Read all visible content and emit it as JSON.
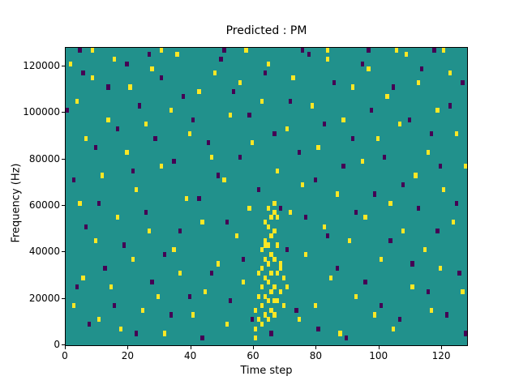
{
  "title": "Predicted : PM",
  "xlabel": "Time step",
  "ylabel": "Frequency (Hz)",
  "chart_data": {
    "type": "heatmap",
    "title": "Predicted : PM",
    "xlabel": "Time step",
    "ylabel": "Frequency (Hz)",
    "x_range": [
      0,
      128
    ],
    "y_range": [
      0,
      128000
    ],
    "x_ticks": [
      0,
      20,
      40,
      60,
      80,
      100,
      120
    ],
    "y_ticks": [
      0,
      20000,
      40000,
      60000,
      80000,
      100000,
      120000
    ],
    "grid_cols": 128,
    "grid_rows": 64,
    "background_color": "#21918c",
    "point_colors": {
      "1": "#fde725",
      "0": "#440154"
    },
    "legend": "none",
    "grid": false,
    "points": [
      [
        1,
        60,
        1
      ],
      [
        2,
        8,
        1
      ],
      [
        3,
        52,
        1
      ],
      [
        4,
        30,
        1
      ],
      [
        5,
        14,
        1
      ],
      [
        6,
        44,
        1
      ],
      [
        8,
        57,
        1
      ],
      [
        9,
        22,
        1
      ],
      [
        10,
        5,
        1
      ],
      [
        11,
        36,
        1
      ],
      [
        13,
        48,
        1
      ],
      [
        14,
        12,
        1
      ],
      [
        15,
        61,
        1
      ],
      [
        16,
        27,
        1
      ],
      [
        17,
        3,
        1
      ],
      [
        19,
        41,
        1
      ],
      [
        20,
        55,
        1
      ],
      [
        21,
        18,
        1
      ],
      [
        22,
        33,
        1
      ],
      [
        24,
        7,
        1
      ],
      [
        25,
        47,
        1
      ],
      [
        26,
        24,
        1
      ],
      [
        27,
        59,
        1
      ],
      [
        29,
        10,
        1
      ],
      [
        30,
        38,
        1
      ],
      [
        31,
        2,
        1
      ],
      [
        33,
        50,
        1
      ],
      [
        34,
        20,
        1
      ],
      [
        35,
        62,
        1
      ],
      [
        36,
        15,
        1
      ],
      [
        38,
        31,
        1
      ],
      [
        39,
        45,
        1
      ],
      [
        40,
        6,
        1
      ],
      [
        42,
        54,
        1
      ],
      [
        43,
        26,
        1
      ],
      [
        44,
        11,
        1
      ],
      [
        46,
        40,
        1
      ],
      [
        47,
        58,
        1
      ],
      [
        48,
        17,
        1
      ],
      [
        50,
        35,
        1
      ],
      [
        51,
        4,
        1
      ],
      [
        52,
        49,
        1
      ],
      [
        54,
        23,
        1
      ],
      [
        55,
        56,
        1
      ],
      [
        56,
        13,
        1
      ],
      [
        58,
        29,
        1
      ],
      [
        59,
        43,
        1
      ],
      [
        60,
        1,
        1
      ],
      [
        62,
        52,
        1
      ],
      [
        63,
        21,
        1
      ],
      [
        64,
        60,
        1
      ],
      [
        66,
        9,
        1
      ],
      [
        67,
        37,
        1
      ],
      [
        68,
        16,
        1
      ],
      [
        70,
        46,
        1
      ],
      [
        71,
        28,
        1
      ],
      [
        72,
        57,
        1
      ],
      [
        74,
        5,
        1
      ],
      [
        75,
        34,
        1
      ],
      [
        76,
        19,
        1
      ],
      [
        78,
        51,
        1
      ],
      [
        79,
        8,
        1
      ],
      [
        80,
        42,
        1
      ],
      [
        82,
        25,
        1
      ],
      [
        83,
        61,
        1
      ],
      [
        84,
        14,
        1
      ],
      [
        86,
        32,
        1
      ],
      [
        87,
        2,
        1
      ],
      [
        88,
        48,
        1
      ],
      [
        90,
        22,
        1
      ],
      [
        91,
        55,
        1
      ],
      [
        92,
        10,
        1
      ],
      [
        94,
        39,
        1
      ],
      [
        95,
        27,
        1
      ],
      [
        96,
        59,
        1
      ],
      [
        98,
        6,
        1
      ],
      [
        99,
        44,
        1
      ],
      [
        100,
        18,
        1
      ],
      [
        102,
        53,
        1
      ],
      [
        103,
        30,
        1
      ],
      [
        104,
        3,
        1
      ],
      [
        106,
        47,
        1
      ],
      [
        107,
        24,
        1
      ],
      [
        108,
        62,
        1
      ],
      [
        110,
        12,
        1
      ],
      [
        111,
        36,
        1
      ],
      [
        112,
        56,
        1
      ],
      [
        114,
        20,
        1
      ],
      [
        115,
        41,
        1
      ],
      [
        116,
        7,
        1
      ],
      [
        118,
        50,
        1
      ],
      [
        119,
        16,
        1
      ],
      [
        120,
        33,
        1
      ],
      [
        122,
        58,
        1
      ],
      [
        123,
        26,
        1
      ],
      [
        124,
        45,
        1
      ],
      [
        126,
        11,
        1
      ],
      [
        127,
        38,
        1
      ],
      [
        8,
        63,
        1
      ],
      [
        30,
        63,
        1
      ],
      [
        57,
        63,
        1
      ],
      [
        83,
        63,
        1
      ],
      [
        105,
        63,
        1
      ],
      [
        120,
        63,
        1
      ],
      [
        60,
        3,
        1
      ],
      [
        60,
        7,
        1
      ],
      [
        61,
        5,
        1
      ],
      [
        61,
        10,
        1
      ],
      [
        62,
        4,
        1
      ],
      [
        62,
        8,
        1
      ],
      [
        62,
        12,
        1
      ],
      [
        62,
        16,
        1
      ],
      [
        63,
        6,
        1
      ],
      [
        63,
        10,
        1
      ],
      [
        63,
        14,
        1
      ],
      [
        63,
        18,
        1
      ],
      [
        63,
        22,
        1
      ],
      [
        64,
        5,
        1
      ],
      [
        64,
        9,
        1
      ],
      [
        64,
        13,
        1
      ],
      [
        64,
        17,
        1
      ],
      [
        64,
        21,
        1
      ],
      [
        64,
        25,
        1
      ],
      [
        65,
        7,
        1
      ],
      [
        65,
        11,
        1
      ],
      [
        65,
        15,
        1
      ],
      [
        65,
        19,
        1
      ],
      [
        65,
        23,
        1
      ],
      [
        66,
        6,
        1
      ],
      [
        66,
        12,
        1
      ],
      [
        66,
        18,
        1
      ],
      [
        66,
        24,
        1
      ],
      [
        66,
        28,
        1
      ],
      [
        67,
        9,
        1
      ],
      [
        67,
        15,
        1
      ],
      [
        67,
        21,
        1
      ],
      [
        68,
        11,
        1
      ],
      [
        68,
        17,
        1
      ],
      [
        69,
        8,
        1
      ],
      [
        69,
        14,
        1
      ],
      [
        70,
        12,
        1
      ],
      [
        61,
        15,
        1
      ],
      [
        62,
        20,
        1
      ],
      [
        63,
        26,
        1
      ],
      [
        65,
        27,
        1
      ],
      [
        66,
        30,
        1
      ],
      [
        64,
        29,
        1
      ],
      [
        67,
        27,
        1
      ],
      [
        0,
        50,
        0
      ],
      [
        2,
        35,
        0
      ],
      [
        3,
        12,
        0
      ],
      [
        5,
        58,
        0
      ],
      [
        6,
        25,
        0
      ],
      [
        7,
        4,
        0
      ],
      [
        9,
        42,
        0
      ],
      [
        10,
        30,
        0
      ],
      [
        12,
        16,
        0
      ],
      [
        13,
        55,
        0
      ],
      [
        15,
        8,
        0
      ],
      [
        16,
        46,
        0
      ],
      [
        18,
        21,
        0
      ],
      [
        19,
        60,
        0
      ],
      [
        21,
        37,
        0
      ],
      [
        22,
        2,
        0
      ],
      [
        23,
        51,
        0
      ],
      [
        25,
        28,
        0
      ],
      [
        27,
        13,
        0
      ],
      [
        28,
        44,
        0
      ],
      [
        30,
        57,
        0
      ],
      [
        31,
        19,
        0
      ],
      [
        33,
        6,
        0
      ],
      [
        34,
        39,
        0
      ],
      [
        36,
        24,
        0
      ],
      [
        37,
        53,
        0
      ],
      [
        39,
        10,
        0
      ],
      [
        40,
        48,
        0
      ],
      [
        42,
        31,
        0
      ],
      [
        43,
        1,
        0
      ],
      [
        45,
        43,
        0
      ],
      [
        46,
        15,
        0
      ],
      [
        48,
        36,
        0
      ],
      [
        49,
        61,
        0
      ],
      [
        51,
        26,
        0
      ],
      [
        52,
        9,
        0
      ],
      [
        53,
        54,
        0
      ],
      [
        55,
        40,
        0
      ],
      [
        56,
        18,
        0
      ],
      [
        58,
        49,
        0
      ],
      [
        59,
        5,
        0
      ],
      [
        61,
        33,
        0
      ],
      [
        63,
        58,
        0
      ],
      [
        65,
        2,
        0
      ],
      [
        66,
        45,
        0
      ],
      [
        68,
        29,
        0
      ],
      [
        70,
        20,
        0
      ],
      [
        71,
        52,
        0
      ],
      [
        73,
        7,
        0
      ],
      [
        74,
        41,
        0
      ],
      [
        76,
        27,
        0
      ],
      [
        77,
        62,
        0
      ],
      [
        79,
        35,
        0
      ],
      [
        80,
        3,
        0
      ],
      [
        82,
        47,
        0
      ],
      [
        83,
        23,
        0
      ],
      [
        85,
        56,
        0
      ],
      [
        86,
        16,
        0
      ],
      [
        88,
        38,
        0
      ],
      [
        89,
        1,
        0
      ],
      [
        91,
        44,
        0
      ],
      [
        92,
        28,
        0
      ],
      [
        94,
        60,
        0
      ],
      [
        95,
        13,
        0
      ],
      [
        97,
        50,
        0
      ],
      [
        98,
        32,
        0
      ],
      [
        100,
        8,
        0
      ],
      [
        101,
        40,
        0
      ],
      [
        103,
        22,
        0
      ],
      [
        104,
        55,
        0
      ],
      [
        106,
        5,
        0
      ],
      [
        107,
        34,
        0
      ],
      [
        109,
        48,
        0
      ],
      [
        110,
        17,
        0
      ],
      [
        112,
        29,
        0
      ],
      [
        113,
        59,
        0
      ],
      [
        115,
        11,
        0
      ],
      [
        116,
        45,
        0
      ],
      [
        118,
        24,
        0
      ],
      [
        119,
        38,
        0
      ],
      [
        121,
        6,
        0
      ],
      [
        122,
        51,
        0
      ],
      [
        124,
        30,
        0
      ],
      [
        125,
        15,
        0
      ],
      [
        126,
        56,
        0
      ],
      [
        127,
        2,
        0
      ],
      [
        4,
        63,
        0
      ],
      [
        26,
        62,
        0
      ],
      [
        50,
        63,
        0
      ],
      [
        75,
        63,
        0
      ],
      [
        96,
        63,
        0
      ],
      [
        117,
        63,
        0
      ]
    ]
  }
}
